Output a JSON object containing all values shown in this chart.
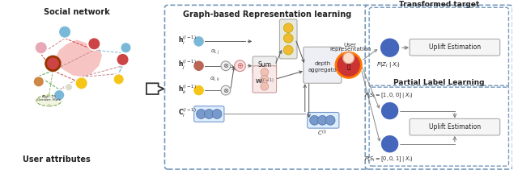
{
  "bg_color": "#ffffff",
  "section1_title": "Social network",
  "section2_title": "Graph-based Representation learning",
  "section3a_title": "Transformed target",
  "section3b_title": "Partial Label Learning",
  "user_attr_label": "User attributes",
  "colors": {
    "dashed_box": "#7799bb",
    "pink_region": "#f5b8b8",
    "node_blue": "#7ab0d8",
    "node_pink": "#e8a0b0",
    "node_red": "#cc4444",
    "node_orange": "#cc8844",
    "node_yellow": "#f5c518",
    "arrow_gray": "#888888",
    "box_border": "#aaaaaa",
    "traffic_yellow": "#f0bb30",
    "traffic_bg": "#e8e8e8",
    "sum_box_bg": "#eeeeee",
    "depth_box_bg": "#eeeef5",
    "uplift_box_bg": "#f5f5f5",
    "blue_circle": "#4466bb",
    "ci_circle": "#7799cc",
    "ci_bg": "#ddeeff",
    "agg_circle": "#d0d0e8",
    "multiply_bg": "#f0f0f0",
    "plus_bg": "#f8e0e0",
    "green_line": "#44aa44",
    "red_line": "#cc4444",
    "blue_line": "#7ab0d8"
  }
}
